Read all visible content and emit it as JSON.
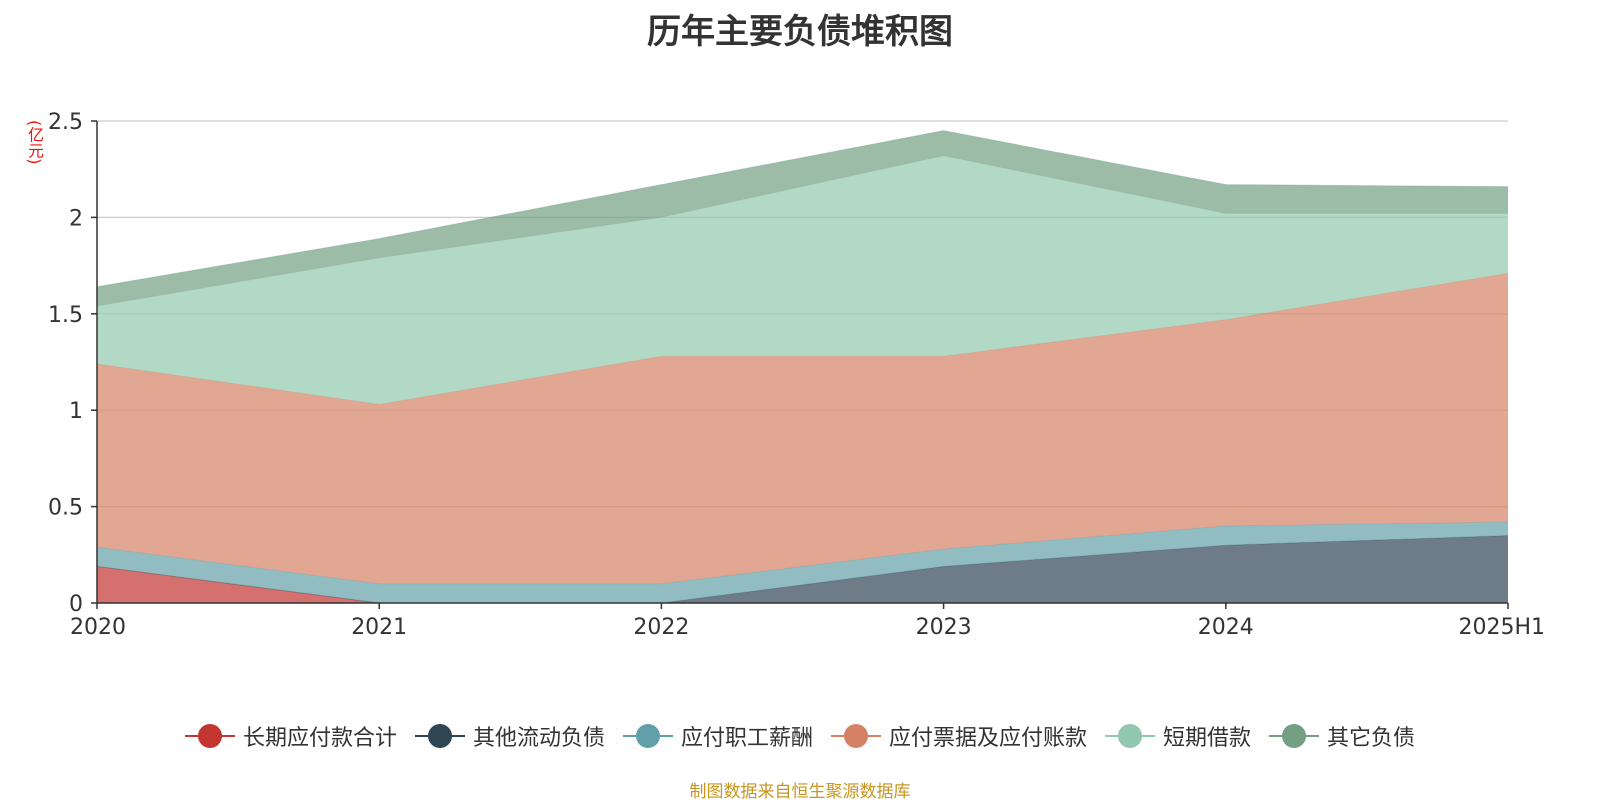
{
  "chart_data": {
    "type": "area",
    "stacked": true,
    "title": "历年主要负债堆积图",
    "unit": "(亿元)",
    "categories": [
      "2020",
      "2021",
      "2022",
      "2023",
      "2024",
      "2025H1"
    ],
    "ylim": [
      0,
      2.5
    ],
    "yticks": [
      "0",
      "0.5",
      "1",
      "1.5",
      "2",
      "2.5"
    ],
    "grid": true,
    "legend_position": "bottom",
    "series": [
      {
        "name": "长期应付款合计",
        "color": "#c23531",
        "values": [
          0.19,
          0,
          0,
          0,
          0,
          0
        ]
      },
      {
        "name": "其他流动负债",
        "color": "#2f4554",
        "values": [
          0,
          0,
          0,
          0.19,
          0.3,
          0.35
        ]
      },
      {
        "name": "应付职工薪酬",
        "color": "#61a0a8",
        "values": [
          0.1,
          0.1,
          0.1,
          0.09,
          0.1,
          0.07
        ]
      },
      {
        "name": "应付票据及应付账款",
        "color": "#d48265",
        "values": [
          0.95,
          0.93,
          1.18,
          1.0,
          1.07,
          1.29
        ]
      },
      {
        "name": "短期借款",
        "color": "#91c7ae",
        "values": [
          0.3,
          0.76,
          0.72,
          1.04,
          0.55,
          0.31
        ]
      },
      {
        "name": "其它负债",
        "color": "#749f83",
        "values": [
          0.1,
          0.1,
          0.17,
          0.13,
          0.15,
          0.14
        ]
      }
    ]
  },
  "source_note": "制图数据来自恒生聚源数据库"
}
